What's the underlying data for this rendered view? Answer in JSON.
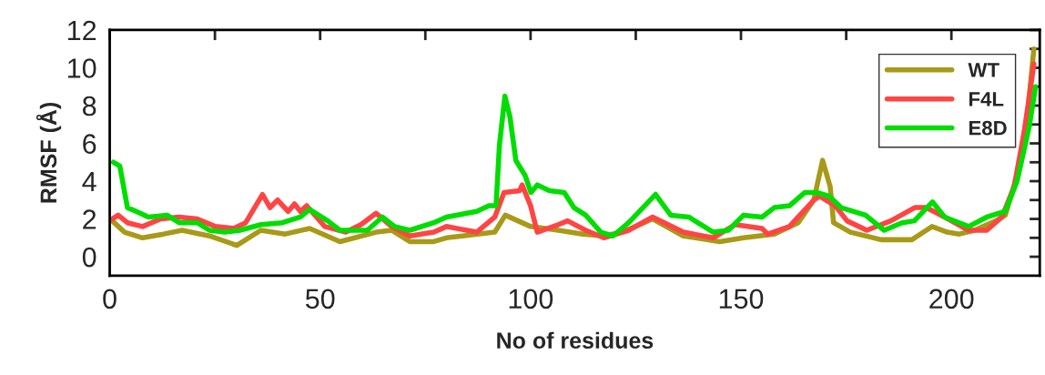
{
  "chart_data": {
    "type": "line",
    "xlabel": "No of residues",
    "ylabel": "RMSF (Å)",
    "xlim": [
      0,
      221
    ],
    "ylim": [
      -1,
      12
    ],
    "xticks": [
      0,
      {
        "value": 25,
        "label": null
      },
      50,
      {
        "value": 75,
        "label": null
      },
      100,
      {
        "value": 125,
        "label": null
      },
      150,
      {
        "value": 175,
        "label": null
      },
      200
    ],
    "yticks": [
      0,
      {
        "value": 1,
        "label": null
      },
      2,
      {
        "value": 3,
        "label": null
      },
      4,
      {
        "value": 5,
        "label": null
      },
      6,
      {
        "value": 7,
        "label": null
      },
      8,
      {
        "value": 9,
        "label": null
      },
      10,
      {
        "value": 11,
        "label": null
      },
      12
    ],
    "grid": false,
    "legend": "top right",
    "marker": "none",
    "line_style": "solid",
    "series": [
      {
        "name": "WT",
        "color": "#a89a18",
        "x": [
          0.6,
          3.5,
          7.8,
          12.8,
          17.2,
          23.7,
          30.2,
          35.9,
          41.7,
          47.5,
          54.7,
          63.3,
          67,
          71.3,
          77,
          80,
          91.5,
          94,
          100,
          106.6,
          112.4,
          117.4,
          121.8,
          129,
          136.3,
          145,
          150.6,
          157.9,
          163.6,
          167.3,
          169.4,
          171.2,
          172,
          176,
          183.3,
          190.6,
          195.4,
          199,
          201.9,
          205.5,
          210.6,
          212.8,
          215.6,
          218.2,
          219.6
        ],
        "values": [
          1.9,
          1.3,
          1.0,
          1.2,
          1.4,
          1.1,
          0.6,
          1.4,
          1.2,
          1.5,
          0.8,
          1.3,
          1.4,
          0.8,
          0.8,
          1.0,
          1.3,
          2.2,
          1.6,
          1.4,
          1.2,
          1.1,
          1.3,
          2.0,
          1.1,
          0.8,
          1.0,
          1.2,
          1.8,
          3.0,
          5.1,
          3.7,
          1.8,
          1.3,
          0.9,
          0.9,
          1.6,
          1.3,
          1.2,
          1.4,
          1.9,
          2.2,
          4.3,
          7.8,
          11.0
        ]
      },
      {
        "name": "F4L",
        "color": "#ff4444",
        "x": [
          0.6,
          2,
          4.2,
          7.8,
          12.1,
          16.5,
          20.8,
          25.1,
          29.4,
          32.3,
          36.3,
          38.1,
          39.9,
          42.4,
          43.9,
          45.3,
          46.8,
          51.1,
          56.1,
          59.7,
          63.3,
          67,
          71.3,
          77,
          80,
          87.2,
          91.5,
          93.7,
          97.4,
          98,
          100,
          101.6,
          106.6,
          108.8,
          113.1,
          117.4,
          123.3,
          129,
          136.3,
          143.4,
          148.6,
          155,
          156.4,
          161.5,
          167.3,
          168.7,
          172.4,
          175.2,
          179.9,
          185.6,
          191.3,
          194,
          198.4,
          204.1,
          208.4,
          212,
          214.9,
          217.3,
          219.6
        ],
        "values": [
          2.0,
          2.2,
          1.8,
          1.6,
          2.0,
          2.1,
          2.0,
          1.6,
          1.5,
          1.8,
          3.3,
          2.6,
          3.0,
          2.4,
          2.8,
          2.4,
          2.7,
          1.6,
          1.3,
          1.7,
          2.3,
          1.6,
          1.1,
          1.3,
          1.6,
          1.3,
          2.1,
          3.4,
          3.5,
          3.8,
          2.7,
          1.3,
          1.7,
          1.9,
          1.4,
          1.0,
          1.4,
          2.1,
          1.3,
          1.0,
          1.7,
          1.5,
          1.2,
          1.6,
          3.0,
          3.2,
          2.7,
          1.9,
          1.4,
          1.9,
          2.6,
          2.6,
          2.1,
          1.4,
          1.4,
          2.1,
          3.7,
          6.6,
          10.2
        ]
      },
      {
        "name": "E8D",
        "color": "#00dd00",
        "x": [
          0.9,
          2.4,
          4.2,
          6.3,
          9.2,
          13.6,
          16.5,
          20.8,
          23.7,
          27.3,
          30.9,
          36,
          41,
          45.3,
          47.5,
          51.8,
          54.7,
          58.3,
          61.2,
          64.8,
          67.7,
          71.3,
          77,
          80,
          87.2,
          90.1,
          91.8,
          92.6,
          93.9,
          95.1,
          96.5,
          98.7,
          100.1,
          101.6,
          104.5,
          108,
          110.3,
          113.1,
          116.7,
          119.6,
          123.3,
          129.7,
          133.3,
          137.6,
          143.4,
          147,
          150.6,
          155,
          157.9,
          161.5,
          165.2,
          168,
          171,
          173.8,
          179.6,
          184,
          188.3,
          191.2,
          195.5,
          198.4,
          204.1,
          208.4,
          212.8,
          215.6,
          218.5,
          220
        ],
        "values": [
          5.0,
          4.8,
          2.6,
          2.4,
          2.1,
          2.2,
          1.8,
          1.8,
          1.4,
          1.3,
          1.4,
          1.7,
          1.8,
          2.1,
          2.5,
          1.9,
          1.4,
          1.4,
          1.4,
          2.1,
          1.6,
          1.4,
          1.8,
          2.1,
          2.4,
          2.7,
          2.7,
          5.9,
          8.5,
          7.4,
          5.1,
          4.3,
          3.4,
          3.8,
          3.5,
          3.4,
          2.6,
          2.2,
          1.3,
          1.1,
          1.8,
          3.3,
          2.2,
          2.1,
          1.3,
          1.4,
          2.2,
          2.1,
          2.6,
          2.7,
          3.4,
          3.4,
          3.2,
          2.6,
          2.2,
          1.4,
          1.8,
          1.9,
          2.9,
          2.1,
          1.6,
          2.1,
          2.4,
          4.0,
          6.9,
          9.0
        ]
      }
    ]
  }
}
